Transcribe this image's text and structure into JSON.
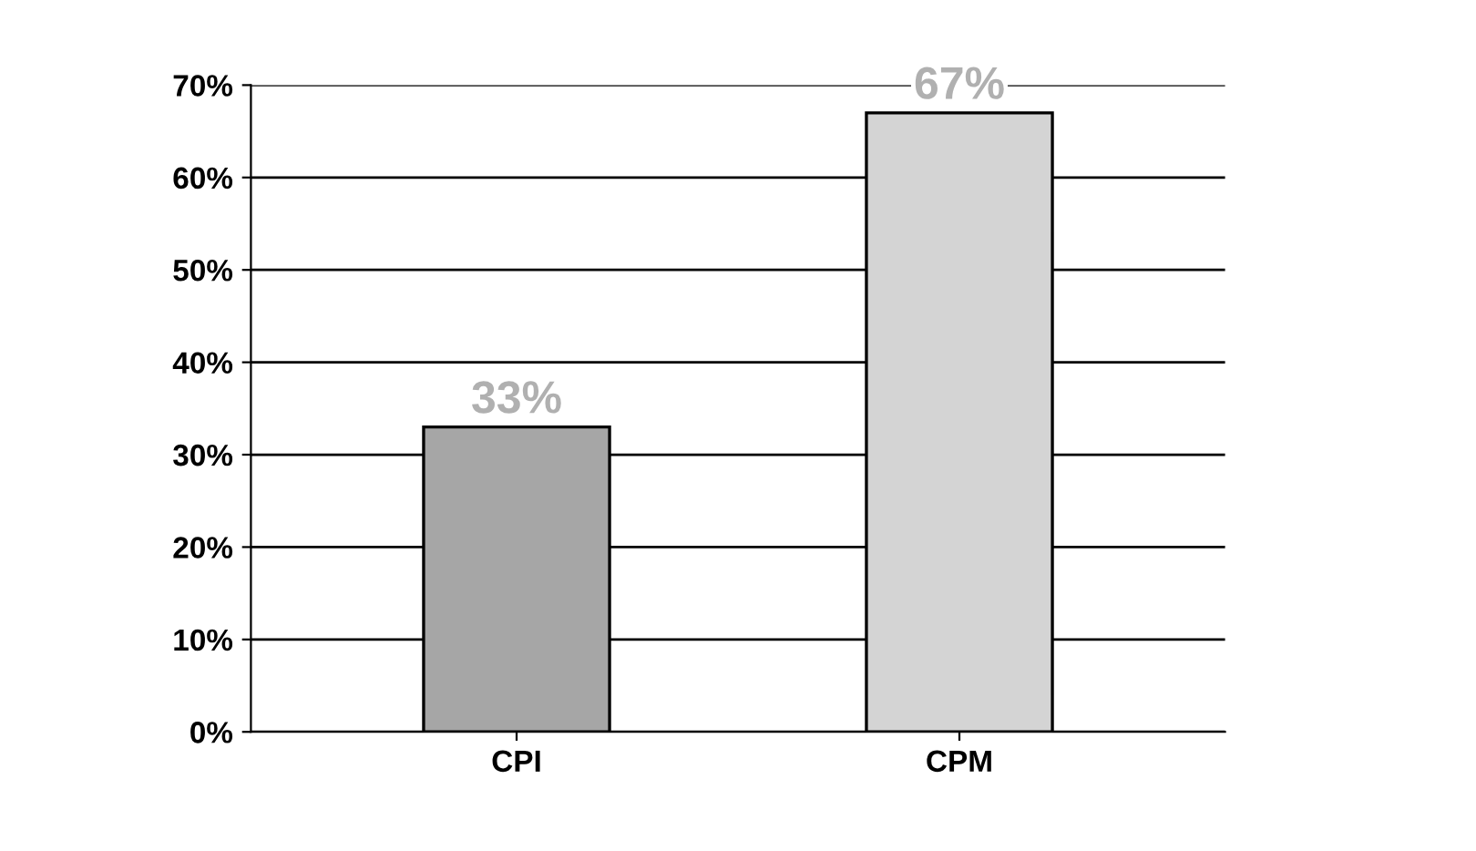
{
  "chart_data": {
    "type": "bar",
    "categories": [
      "CPI",
      "CPM"
    ],
    "values": [
      33,
      67
    ],
    "colors": [
      "#a6a6a6",
      "#d4d4d4"
    ],
    "value_labels": [
      "33%",
      "67%"
    ],
    "ylim": [
      0,
      70
    ],
    "yticks": [
      {
        "value": 0,
        "label": "0%"
      },
      {
        "value": 10,
        "label": "10%"
      },
      {
        "value": 20,
        "label": "20%"
      },
      {
        "value": 30,
        "label": "30%"
      },
      {
        "value": 40,
        "label": "40%"
      },
      {
        "value": 50,
        "label": "50%"
      },
      {
        "value": 60,
        "label": "60%"
      },
      {
        "value": 70,
        "label": "70%"
      }
    ],
    "grid": "y"
  }
}
